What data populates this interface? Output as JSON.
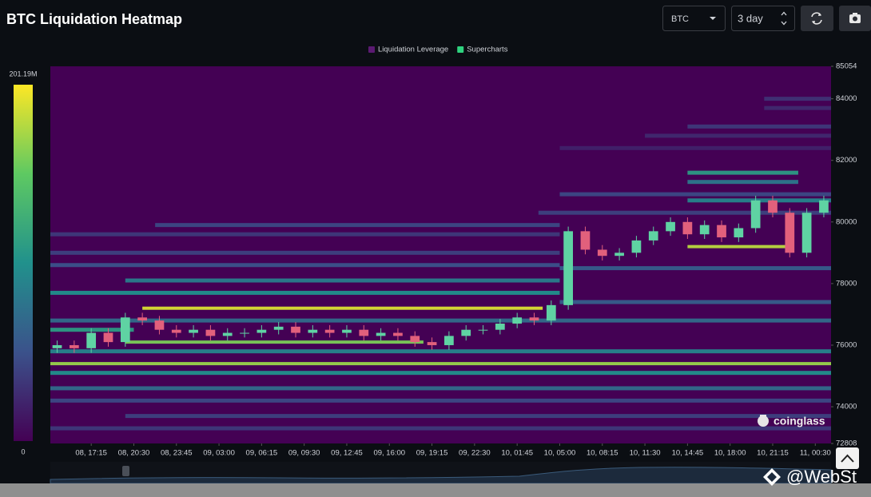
{
  "chart_data": {
    "type": "liquidation-heatmap",
    "title": "BTC Liquidation Heatmap",
    "controls": {
      "symbol": "BTC",
      "range": "3 day"
    },
    "legend": [
      {
        "name": "Liquidation Leverage",
        "color": "#5b1a72"
      },
      {
        "name": "Supercharts",
        "color": "#2fd37f"
      }
    ],
    "colorscale": [
      "#440154",
      "#3b528b",
      "#21918c",
      "#5ec962",
      "#fde725"
    ],
    "colorbar_lim": [
      0,
      201.19
    ],
    "colorbar_ticks": [
      0,
      {
        "value": 201.19,
        "label": "201.19M"
      }
    ],
    "ylim": [
      72808,
      85054
    ],
    "yticks": [
      72808,
      74000,
      76000,
      78000,
      80000,
      82000,
      84000,
      85054
    ],
    "xlim": [
      -0.96,
      17.37
    ],
    "xticks": [
      {
        "value": 0,
        "label": "08, 17:15"
      },
      {
        "value": 1,
        "label": "08, 20:30"
      },
      {
        "value": 2,
        "label": "08, 23:45"
      },
      {
        "value": 3,
        "label": "09, 03:00"
      },
      {
        "value": 4,
        "label": "09, 06:15"
      },
      {
        "value": 5,
        "label": "09, 09:30"
      },
      {
        "value": 6,
        "label": "09, 12:45"
      },
      {
        "value": 7,
        "label": "09, 16:00"
      },
      {
        "value": 8,
        "label": "09, 19:15"
      },
      {
        "value": 9,
        "label": "09, 22:30"
      },
      {
        "value": 10,
        "label": "10, 01:45"
      },
      {
        "value": 11,
        "label": "10, 05:00"
      },
      {
        "value": 12,
        "label": "10, 08:15"
      },
      {
        "value": 13,
        "label": "10, 11:30"
      },
      {
        "value": 14,
        "label": "10, 14:45"
      },
      {
        "value": 15,
        "label": "10, 18:00"
      },
      {
        "value": 16,
        "label": "10, 21:15"
      },
      {
        "value": 17,
        "label": "11, 00:30"
      }
    ],
    "bands": [
      {
        "price": 84000,
        "start": 15.8,
        "end": 17.37,
        "value": 30
      },
      {
        "price": 83700,
        "start": 15.8,
        "end": 17.37,
        "value": 25
      },
      {
        "price": 83100,
        "start": 14.0,
        "end": 17.37,
        "value": 35
      },
      {
        "price": 82800,
        "start": 13.0,
        "end": 17.37,
        "value": 25
      },
      {
        "price": 82400,
        "start": 11.0,
        "end": 17.37,
        "value": 20
      },
      {
        "price": 81600,
        "start": 14.0,
        "end": 16.6,
        "value": 110
      },
      {
        "price": 81300,
        "start": 14.0,
        "end": 16.6,
        "value": 80
      },
      {
        "price": 80900,
        "start": 11.0,
        "end": 17.37,
        "value": 45
      },
      {
        "price": 80700,
        "start": 14.0,
        "end": 17.37,
        "value": 90
      },
      {
        "price": 80300,
        "start": 10.5,
        "end": 17.37,
        "value": 40
      },
      {
        "price": 79900,
        "start": 1.5,
        "end": 11.0,
        "value": 45
      },
      {
        "price": 79600,
        "start": -0.96,
        "end": 11.0,
        "value": 35
      },
      {
        "price": 79200,
        "start": 14.0,
        "end": 16.3,
        "value": 180
      },
      {
        "price": 79000,
        "start": -0.96,
        "end": 11.0,
        "value": 40
      },
      {
        "price": 78600,
        "start": -0.96,
        "end": 11.0,
        "value": 50
      },
      {
        "price": 78500,
        "start": 11.0,
        "end": 17.37,
        "value": 60
      },
      {
        "price": 78100,
        "start": 0.8,
        "end": 11.0,
        "value": 85
      },
      {
        "price": 77700,
        "start": -0.96,
        "end": 11.0,
        "value": 100
      },
      {
        "price": 77400,
        "start": 11.0,
        "end": 17.37,
        "value": 60
      },
      {
        "price": 77200,
        "start": 1.2,
        "end": 10.6,
        "value": 190
      },
      {
        "price": 76800,
        "start": -0.96,
        "end": 17.37,
        "value": 70
      },
      {
        "price": 76500,
        "start": -0.96,
        "end": 1.0,
        "value": 110
      },
      {
        "price": 76100,
        "start": 0.8,
        "end": 7.8,
        "value": 160
      },
      {
        "price": 75800,
        "start": -0.96,
        "end": 17.37,
        "value": 90
      },
      {
        "price": 75400,
        "start": -0.96,
        "end": 17.37,
        "value": 170
      },
      {
        "price": 75100,
        "start": -0.96,
        "end": 17.37,
        "value": 100
      },
      {
        "price": 74600,
        "start": -0.96,
        "end": 17.37,
        "value": 70
      },
      {
        "price": 74200,
        "start": -0.96,
        "end": 17.37,
        "value": 45
      },
      {
        "price": 73700,
        "start": 0.8,
        "end": 17.37,
        "value": 40
      },
      {
        "price": 73300,
        "start": -0.96,
        "end": 17.37,
        "value": 35
      }
    ],
    "candles": {
      "up_color": "#5fd3a3",
      "down_color": "#e2607c",
      "x": [
        -0.8,
        -0.4,
        0,
        0.4,
        0.8,
        1.2,
        1.6,
        2.0,
        2.4,
        2.8,
        3.2,
        3.6,
        4.0,
        4.4,
        4.8,
        5.2,
        5.6,
        6.0,
        6.4,
        6.8,
        7.2,
        7.6,
        8.0,
        8.4,
        8.8,
        9.2,
        9.6,
        10.0,
        10.4,
        10.8,
        11.2,
        11.6,
        12.0,
        12.4,
        12.8,
        13.2,
        13.6,
        14.0,
        14.4,
        14.8,
        15.2,
        15.6,
        16.0,
        16.4,
        16.8,
        17.2
      ],
      "open": [
        75900,
        76000,
        75900,
        76400,
        76100,
        76900,
        76800,
        76500,
        76400,
        76500,
        76300,
        76400,
        76400,
        76500,
        76600,
        76400,
        76500,
        76400,
        76500,
        76300,
        76400,
        76300,
        76100,
        76000,
        76300,
        76500,
        76500,
        76700,
        76900,
        76800,
        77300,
        79700,
        79100,
        78900,
        79000,
        79400,
        79700,
        80000,
        79600,
        79900,
        79500,
        79800,
        80700,
        80300,
        79000,
        80300
      ],
      "high": [
        76150,
        76150,
        76550,
        76550,
        77050,
        77050,
        76950,
        76650,
        76650,
        76650,
        76550,
        76550,
        76650,
        76750,
        76750,
        76650,
        76650,
        76650,
        76650,
        76550,
        76550,
        76450,
        76250,
        76450,
        76650,
        76650,
        76850,
        77050,
        77050,
        77450,
        79850,
        79850,
        79250,
        79150,
        79550,
        79850,
        80150,
        80150,
        80050,
        80050,
        79950,
        80850,
        80850,
        80450,
        80450,
        80850
      ],
      "low": [
        75750,
        75750,
        75750,
        75950,
        75950,
        76650,
        76350,
        76250,
        76250,
        76150,
        76150,
        76250,
        76250,
        76350,
        76250,
        76250,
        76250,
        76250,
        76150,
        76150,
        76150,
        75950,
        75850,
        75850,
        76150,
        76350,
        76350,
        76550,
        76650,
        76650,
        77150,
        78950,
        78750,
        78750,
        78850,
        79250,
        79550,
        79450,
        79450,
        79350,
        79350,
        79650,
        80150,
        78850,
        78850,
        80150
      ],
      "close": [
        76000,
        75900,
        76400,
        76100,
        76900,
        76800,
        76500,
        76400,
        76500,
        76300,
        76400,
        76400,
        76500,
        76600,
        76400,
        76500,
        76400,
        76500,
        76300,
        76400,
        76300,
        76100,
        76000,
        76300,
        76500,
        76500,
        76700,
        76900,
        76800,
        77300,
        79700,
        79100,
        78900,
        79000,
        79400,
        79700,
        80000,
        79600,
        79900,
        79500,
        79800,
        80700,
        80300,
        79000,
        80300,
        80700
      ]
    },
    "watermark": "coinglass",
    "overlay_text": "@WebSt"
  }
}
